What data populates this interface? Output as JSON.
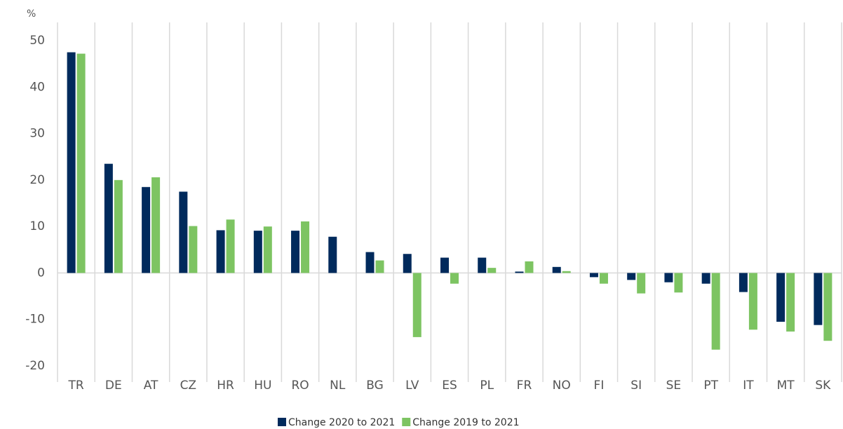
{
  "chart_data": {
    "type": "bar",
    "y_axis_label": "%",
    "categories": [
      "TR",
      "DE",
      "AT",
      "CZ",
      "HR",
      "HU",
      "RO",
      "NL",
      "BG",
      "LV",
      "ES",
      "PL",
      "FR",
      "NO",
      "FI",
      "SI",
      "SE",
      "PT",
      "IT",
      "MT",
      "SK"
    ],
    "series": [
      {
        "name": "Change 2020 to 2021",
        "color": "#002a5c",
        "values": [
          47.5,
          23.5,
          18.5,
          17.5,
          9.2,
          9.1,
          9.1,
          7.8,
          4.5,
          4.1,
          3.3,
          3.3,
          0.3,
          1.3,
          -0.9,
          -1.5,
          -2.0,
          -2.3,
          -4.1,
          -10.5,
          -11.2
        ]
      },
      {
        "name": "Change 2019 to 2021",
        "color": "#7dc462",
        "values": [
          47.2,
          20.0,
          20.6,
          10.1,
          11.5,
          10.0,
          11.1,
          null,
          2.7,
          -13.8,
          -2.3,
          1.1,
          2.5,
          0.4,
          -2.3,
          -4.4,
          -4.2,
          -16.5,
          -12.2,
          -12.6,
          -14.6
        ]
      }
    ],
    "ylim": [
      -20,
      50
    ],
    "yticks": [
      -20,
      -10,
      0,
      10,
      20,
      30,
      40,
      50
    ],
    "grid": false
  }
}
